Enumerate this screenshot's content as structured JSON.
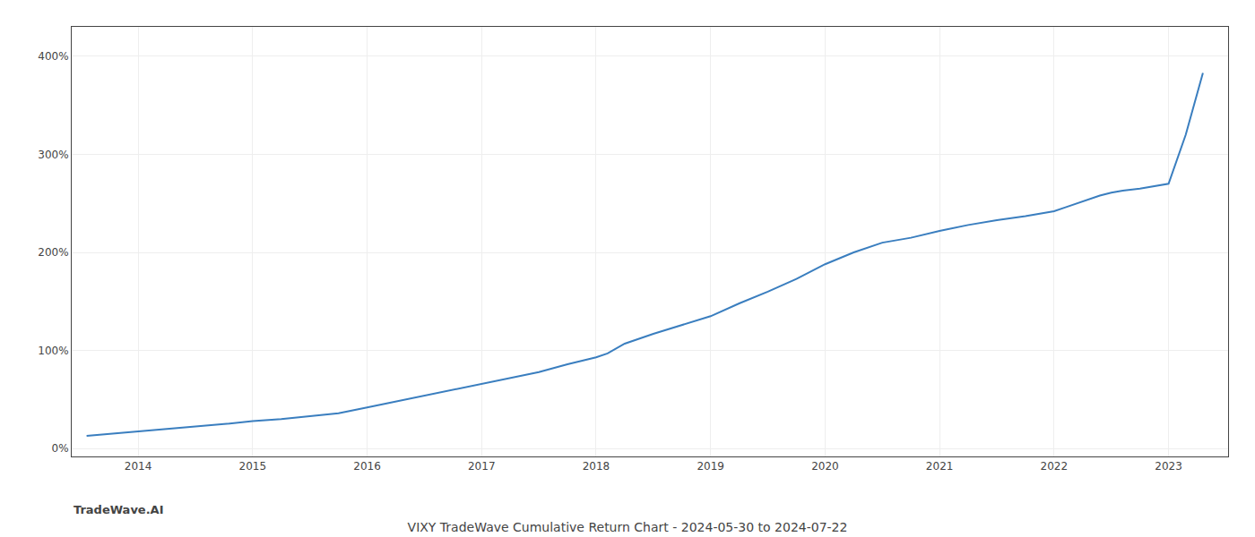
{
  "chart_data": {
    "type": "line",
    "title": "VIXY TradeWave Cumulative Return Chart - 2024-05-30 to 2024-07-22",
    "annotations": [
      "TradeWave.AI"
    ],
    "x": [
      2013.55,
      2013.75,
      2014.0,
      2014.25,
      2014.5,
      2014.75,
      2015.0,
      2015.25,
      2015.5,
      2015.75,
      2016.0,
      2016.25,
      2016.5,
      2016.75,
      2017.0,
      2017.25,
      2017.5,
      2017.75,
      2018.0,
      2018.1,
      2018.25,
      2018.5,
      2018.75,
      2019.0,
      2019.25,
      2019.5,
      2019.75,
      2020.0,
      2020.25,
      2020.5,
      2020.75,
      2021.0,
      2021.25,
      2021.5,
      2021.75,
      2022.0,
      2022.1,
      2022.25,
      2022.4,
      2022.5,
      2022.6,
      2022.75,
      2022.85,
      2023.0,
      2023.15,
      2023.3
    ],
    "values": [
      13,
      15,
      17,
      20,
      22,
      25,
      28,
      30,
      33,
      36,
      42,
      48,
      54,
      60,
      66,
      72,
      78,
      86,
      93,
      97,
      107,
      117,
      126,
      135,
      148,
      160,
      173,
      188,
      200,
      210,
      215,
      222,
      228,
      233,
      237,
      242,
      246,
      252,
      258,
      261,
      263,
      265,
      267,
      270,
      320,
      383
    ],
    "color": "#3a7ebf",
    "xlim": [
      2013.42,
      2023.52
    ],
    "xticks": [
      2014,
      2015,
      2016,
      2017,
      2018,
      2019,
      2020,
      2021,
      2022,
      2023
    ],
    "ylim": [
      -8,
      430
    ],
    "yticks": [
      {
        "value": 0,
        "label": "0%"
      },
      {
        "value": 100,
        "label": "100%"
      },
      {
        "value": 200,
        "label": "200%"
      },
      {
        "value": 300,
        "label": "300%"
      },
      {
        "value": 400,
        "label": "400%"
      }
    ],
    "grid": true
  }
}
